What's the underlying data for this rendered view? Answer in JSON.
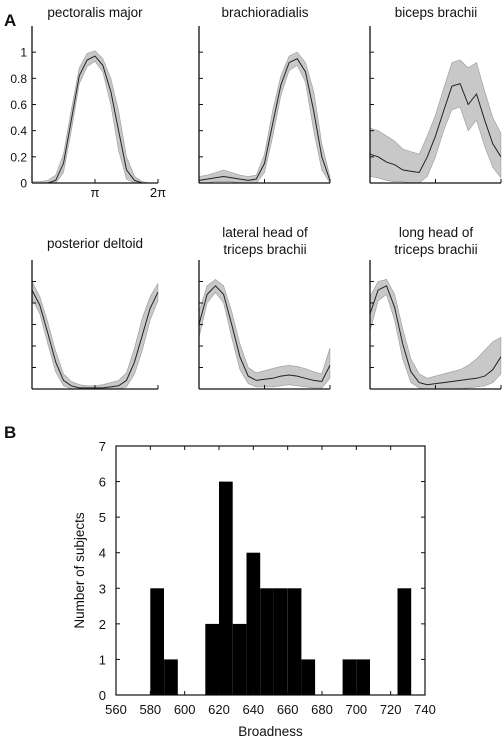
{
  "panel_a": {
    "label": "A"
  },
  "panel_b": {
    "label": "B"
  },
  "colors": {
    "band": "#c8c8c8",
    "band_stroke": "#999999",
    "mean_line": "#222222",
    "bar": "#000000",
    "axis": "#111111"
  },
  "chart_data": [
    {
      "type": "area",
      "panel": "A",
      "title": "pectoralis major",
      "xticklabels": [
        "π",
        "2π"
      ],
      "xticks": [
        3.1416,
        6.2832
      ],
      "xlim": [
        0,
        6.2832
      ],
      "yticklabels": [
        "0",
        "0.2",
        "0.4",
        "0.6",
        "0.8",
        "1"
      ],
      "yticks": [
        0,
        0.2,
        0.4,
        0.6,
        0.8,
        1
      ],
      "ylim": [
        0,
        1.2
      ],
      "x": [
        0.0,
        0.39,
        0.79,
        1.18,
        1.57,
        1.96,
        2.36,
        2.75,
        3.14,
        3.53,
        3.93,
        4.32,
        4.71,
        5.11,
        5.5,
        5.89,
        6.28
      ],
      "mean": [
        0.0,
        0.0,
        0.0,
        0.02,
        0.15,
        0.48,
        0.82,
        0.94,
        0.97,
        0.9,
        0.7,
        0.4,
        0.1,
        0.02,
        0.0,
        0.0,
        0.0
      ],
      "upper": [
        0.01,
        0.01,
        0.02,
        0.06,
        0.22,
        0.56,
        0.88,
        0.99,
        1.01,
        0.95,
        0.8,
        0.55,
        0.2,
        0.05,
        0.01,
        0.0,
        0.0
      ],
      "lower": [
        0.0,
        0.0,
        0.0,
        0.0,
        0.08,
        0.4,
        0.76,
        0.89,
        0.93,
        0.85,
        0.6,
        0.25,
        0.03,
        0.0,
        0.0,
        0.0,
        0.0
      ]
    },
    {
      "type": "area",
      "panel": "A",
      "title": "brachioradialis",
      "xlim": [
        0,
        6.2832
      ],
      "ylim": [
        0,
        1.2
      ],
      "x": [
        0.0,
        0.39,
        0.79,
        1.18,
        1.57,
        1.96,
        2.36,
        2.75,
        3.14,
        3.53,
        3.93,
        4.32,
        4.71,
        5.11,
        5.5,
        5.89,
        6.28
      ],
      "mean": [
        0.02,
        0.03,
        0.04,
        0.05,
        0.04,
        0.03,
        0.02,
        0.03,
        0.15,
        0.45,
        0.75,
        0.92,
        0.95,
        0.85,
        0.55,
        0.2,
        0.02
      ],
      "upper": [
        0.05,
        0.06,
        0.08,
        0.1,
        0.08,
        0.06,
        0.05,
        0.06,
        0.22,
        0.55,
        0.82,
        0.97,
        1.0,
        0.92,
        0.7,
        0.3,
        0.05
      ],
      "lower": [
        0.0,
        0.0,
        0.01,
        0.01,
        0.01,
        0.0,
        0.0,
        0.0,
        0.08,
        0.35,
        0.67,
        0.86,
        0.9,
        0.77,
        0.4,
        0.1,
        0.0
      ]
    },
    {
      "type": "area",
      "panel": "A",
      "title": "biceps brachii",
      "xlim": [
        0,
        6.2832
      ],
      "ylim": [
        0,
        1.2
      ],
      "x": [
        0.0,
        0.39,
        0.79,
        1.18,
        1.57,
        1.96,
        2.36,
        2.75,
        3.14,
        3.53,
        3.93,
        4.32,
        4.71,
        5.11,
        5.5,
        5.89,
        6.28
      ],
      "mean": [
        0.22,
        0.2,
        0.16,
        0.14,
        0.1,
        0.09,
        0.08,
        0.2,
        0.36,
        0.55,
        0.74,
        0.76,
        0.6,
        0.68,
        0.48,
        0.3,
        0.2
      ],
      "upper": [
        0.42,
        0.4,
        0.36,
        0.32,
        0.26,
        0.24,
        0.22,
        0.36,
        0.52,
        0.72,
        0.92,
        0.94,
        0.88,
        0.92,
        0.7,
        0.5,
        0.38
      ],
      "lower": [
        0.05,
        0.04,
        0.02,
        0.01,
        0.01,
        0.0,
        0.0,
        0.05,
        0.2,
        0.4,
        0.56,
        0.58,
        0.4,
        0.48,
        0.28,
        0.12,
        0.04
      ]
    },
    {
      "type": "area",
      "panel": "A",
      "title": "posterior deltoid",
      "xlim": [
        0,
        6.2832
      ],
      "ylim": [
        0,
        1.2
      ],
      "x": [
        0.0,
        0.39,
        0.79,
        1.18,
        1.57,
        1.96,
        2.36,
        2.75,
        3.14,
        3.53,
        3.93,
        4.32,
        4.71,
        5.11,
        5.5,
        5.89,
        6.28
      ],
      "mean": [
        0.92,
        0.78,
        0.52,
        0.25,
        0.08,
        0.03,
        0.01,
        0.01,
        0.01,
        0.01,
        0.02,
        0.03,
        0.08,
        0.25,
        0.5,
        0.75,
        0.9
      ],
      "upper": [
        1.0,
        0.86,
        0.62,
        0.35,
        0.14,
        0.07,
        0.04,
        0.03,
        0.03,
        0.04,
        0.06,
        0.08,
        0.15,
        0.38,
        0.66,
        0.86,
        0.98
      ],
      "lower": [
        0.84,
        0.7,
        0.42,
        0.16,
        0.03,
        0.0,
        0.0,
        0.0,
        0.0,
        0.0,
        0.0,
        0.0,
        0.02,
        0.14,
        0.36,
        0.64,
        0.82
      ]
    },
    {
      "type": "area",
      "panel": "A",
      "title": "lateral head of triceps brachii",
      "xlim": [
        0,
        6.2832
      ],
      "ylim": [
        0,
        1.2
      ],
      "x": [
        0.0,
        0.39,
        0.79,
        1.18,
        1.57,
        1.96,
        2.36,
        2.75,
        3.14,
        3.53,
        3.93,
        4.32,
        4.71,
        5.11,
        5.5,
        5.89,
        6.28
      ],
      "mean": [
        0.6,
        0.88,
        0.96,
        0.88,
        0.6,
        0.3,
        0.12,
        0.08,
        0.09,
        0.1,
        0.12,
        0.13,
        0.12,
        0.1,
        0.08,
        0.07,
        0.22
      ],
      "upper": [
        0.72,
        0.96,
        1.02,
        0.96,
        0.72,
        0.42,
        0.2,
        0.15,
        0.17,
        0.19,
        0.21,
        0.22,
        0.21,
        0.19,
        0.16,
        0.14,
        0.38
      ],
      "lower": [
        0.48,
        0.8,
        0.9,
        0.8,
        0.48,
        0.18,
        0.05,
        0.02,
        0.02,
        0.02,
        0.03,
        0.04,
        0.03,
        0.02,
        0.01,
        0.01,
        0.1
      ]
    },
    {
      "type": "area",
      "panel": "A",
      "title": "long head of triceps brachii",
      "xlim": [
        0,
        6.2832
      ],
      "ylim": [
        0,
        1.2
      ],
      "x": [
        0.0,
        0.39,
        0.79,
        1.18,
        1.57,
        1.96,
        2.36,
        2.75,
        3.14,
        3.53,
        3.93,
        4.32,
        4.71,
        5.11,
        5.5,
        5.89,
        6.28
      ],
      "mean": [
        0.7,
        0.92,
        0.96,
        0.76,
        0.42,
        0.16,
        0.06,
        0.04,
        0.05,
        0.06,
        0.07,
        0.08,
        0.09,
        0.1,
        0.12,
        0.18,
        0.3
      ],
      "upper": [
        0.86,
        1.0,
        1.02,
        0.88,
        0.56,
        0.28,
        0.14,
        0.1,
        0.12,
        0.14,
        0.16,
        0.18,
        0.22,
        0.28,
        0.36,
        0.44,
        0.48
      ],
      "lower": [
        0.54,
        0.82,
        0.88,
        0.64,
        0.28,
        0.06,
        0.01,
        0.0,
        0.0,
        0.0,
        0.0,
        0.0,
        0.01,
        0.02,
        0.03,
        0.06,
        0.14
      ]
    },
    {
      "type": "bar",
      "panel": "B",
      "title": "",
      "xlabel": "Broadness",
      "ylabel": "Number of subjects",
      "xlim": [
        560,
        740
      ],
      "ylim": [
        0,
        7
      ],
      "xticks": [
        560,
        580,
        600,
        620,
        640,
        660,
        680,
        700,
        720,
        740
      ],
      "yticks": [
        0,
        1,
        2,
        3,
        4,
        5,
        6,
        7
      ],
      "bin_width": 8,
      "bin_centers": [
        584,
        592,
        616,
        624,
        632,
        640,
        648,
        656,
        664,
        672,
        696,
        704,
        728
      ],
      "values": [
        3,
        1,
        2,
        6,
        2,
        4,
        3,
        3,
        3,
        1,
        1,
        1,
        3
      ]
    }
  ]
}
